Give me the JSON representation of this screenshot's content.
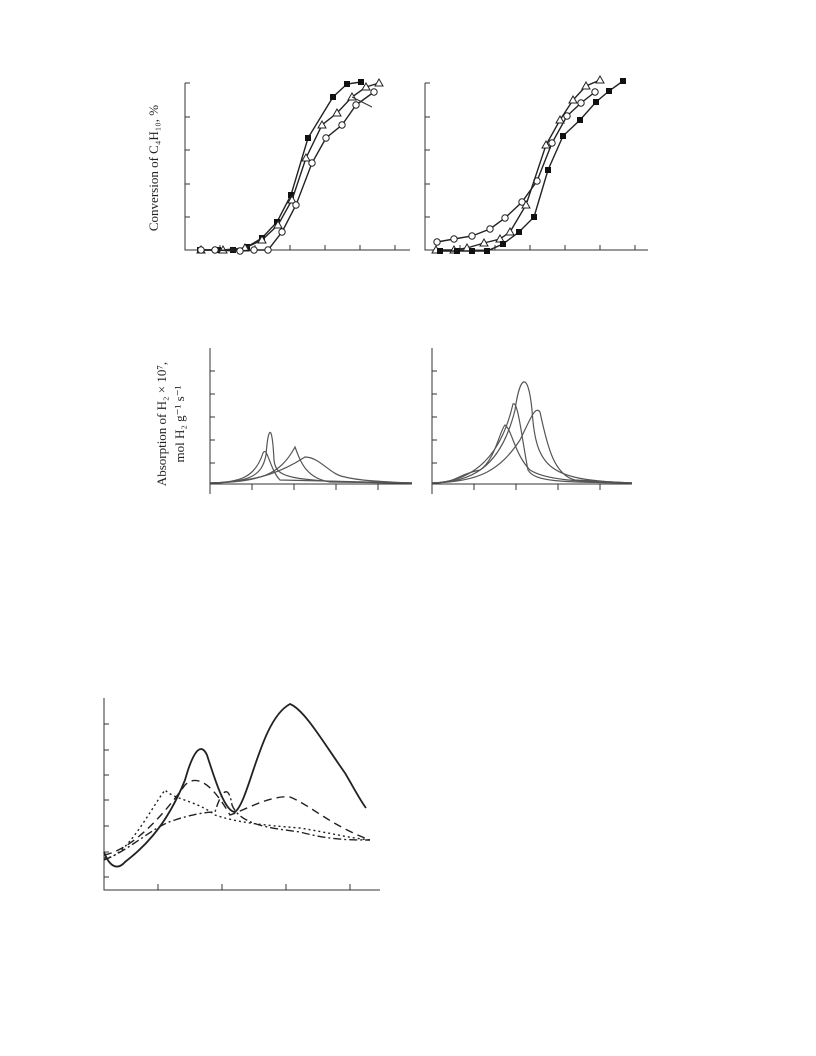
{
  "figure1": {
    "y_label": "Conversion of C₄H₁₀, %"
  },
  "figure2": {
    "y_label_line1": "Absorption of H₂ × 10⁷,",
    "y_label_line2": "mol H₂ g⁻¹ s⁻¹"
  }
}
